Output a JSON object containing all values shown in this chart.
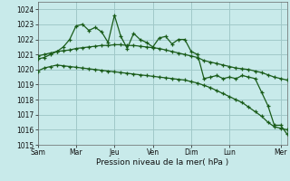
{
  "background_color": "#c8eaea",
  "grid_color": "#a0c8c8",
  "line_color": "#1a5c1a",
  "xlabel": "Pression niveau de la mer( hPa )",
  "ylim": [
    1015,
    1024.5
  ],
  "yticks": [
    1015,
    1016,
    1017,
    1018,
    1019,
    1020,
    1021,
    1022,
    1023,
    1024
  ],
  "day_labels": [
    "Sam",
    "Mar",
    "Jeu",
    "Ven",
    "Dim",
    "Lun",
    "Mer"
  ],
  "day_tick_positions": [
    0,
    6,
    12,
    18,
    24,
    30,
    38
  ],
  "n_points": 40,
  "series1_x": [
    0,
    1,
    2,
    3,
    4,
    5,
    6,
    7,
    8,
    9,
    10,
    11,
    12,
    13,
    14,
    15,
    16,
    17,
    18,
    19,
    20,
    21,
    22,
    23,
    24,
    25,
    26,
    27,
    28,
    29,
    30,
    31,
    32,
    33,
    34,
    35,
    36,
    37,
    38,
    39
  ],
  "series1": [
    1020.7,
    1020.8,
    1021.0,
    1021.2,
    1021.5,
    1022.0,
    1022.9,
    1023.0,
    1022.6,
    1022.8,
    1022.5,
    1021.8,
    1023.6,
    1022.2,
    1021.4,
    1022.4,
    1022.0,
    1021.8,
    1021.5,
    1022.1,
    1022.2,
    1021.7,
    1022.0,
    1022.0,
    1021.2,
    1021.0,
    1019.4,
    1019.5,
    1019.6,
    1019.4,
    1019.5,
    1019.4,
    1019.6,
    1019.5,
    1019.4,
    1018.5,
    1017.6,
    1016.3,
    1016.3,
    1015.7
  ],
  "series2": [
    1020.9,
    1021.0,
    1021.1,
    1021.2,
    1021.25,
    1021.3,
    1021.4,
    1021.45,
    1021.5,
    1021.55,
    1021.6,
    1021.6,
    1021.65,
    1021.65,
    1021.6,
    1021.6,
    1021.55,
    1021.5,
    1021.45,
    1021.4,
    1021.3,
    1021.2,
    1021.1,
    1021.0,
    1020.9,
    1020.8,
    1020.6,
    1020.5,
    1020.4,
    1020.3,
    1020.2,
    1020.1,
    1020.05,
    1020.0,
    1019.9,
    1019.8,
    1019.65,
    1019.5,
    1019.4,
    1019.3
  ],
  "series3": [
    1019.9,
    1020.1,
    1020.2,
    1020.3,
    1020.25,
    1020.2,
    1020.15,
    1020.1,
    1020.05,
    1020.0,
    1019.95,
    1019.9,
    1019.85,
    1019.8,
    1019.75,
    1019.7,
    1019.65,
    1019.6,
    1019.55,
    1019.5,
    1019.45,
    1019.4,
    1019.35,
    1019.3,
    1019.2,
    1019.1,
    1018.95,
    1018.8,
    1018.6,
    1018.4,
    1018.2,
    1018.0,
    1017.8,
    1017.5,
    1017.2,
    1016.9,
    1016.5,
    1016.2,
    1016.1,
    1016.0
  ]
}
